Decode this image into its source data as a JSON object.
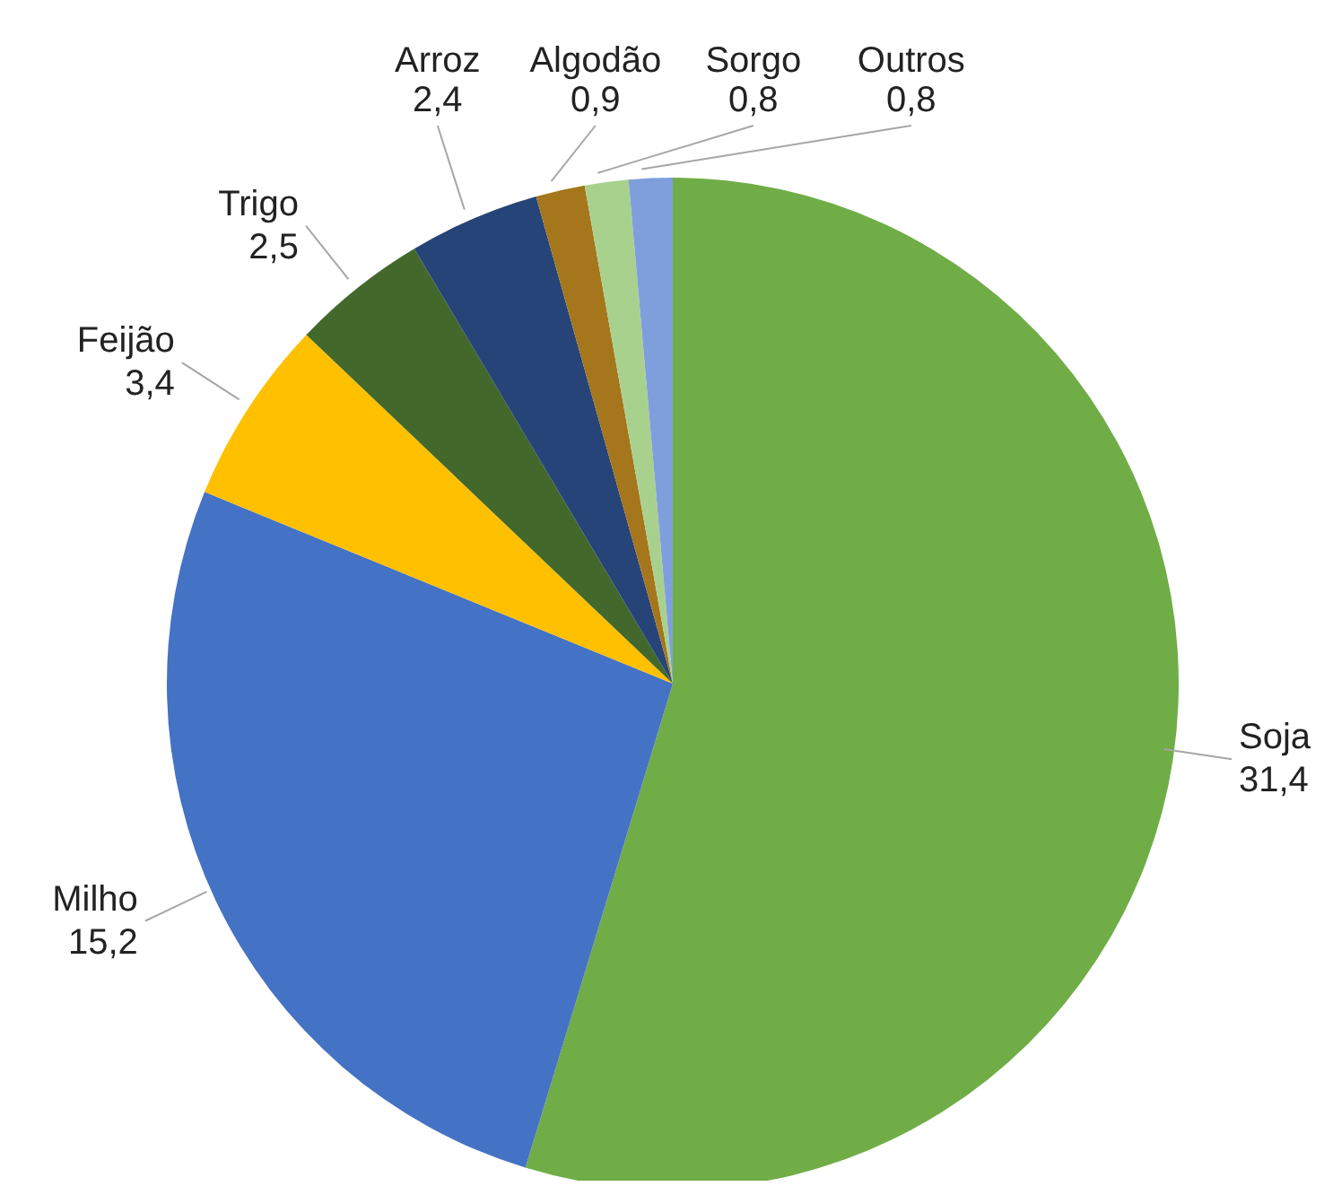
{
  "chart_data": {
    "type": "pie",
    "categories": [
      "Soja",
      "Milho",
      "Feijão",
      "Trigo",
      "Arroz",
      "Algodão",
      "Sorgo",
      "Outros"
    ],
    "values": [
      31.4,
      15.2,
      3.4,
      2.5,
      2.4,
      0.9,
      0.8,
      0.8
    ],
    "value_labels": [
      "31,4",
      "15,2",
      "3,4",
      "2,5",
      "2,4",
      "0,9",
      "0,8",
      "0,8"
    ],
    "colors": [
      "#70ad47",
      "#4472c4",
      "#ffc000",
      "#43682b",
      "#264478",
      "#a5761b",
      "#a9d18e",
      "#7f9fdc"
    ]
  }
}
